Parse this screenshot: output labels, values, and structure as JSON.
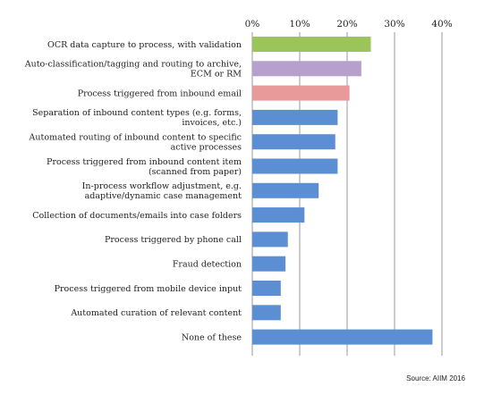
{
  "chart_data": {
    "type": "bar",
    "orientation": "horizontal",
    "categories": [
      [
        "OCR data capture to process, with validation"
      ],
      [
        "Auto-classification/tagging and routing to archive,",
        "ECM or RM"
      ],
      [
        "Process triggered from inbound email"
      ],
      [
        "Separation of inbound content types (e.g. forms,",
        "invoices, etc.)"
      ],
      [
        "Automated routing of inbound content to specific",
        "active processes"
      ],
      [
        "Process triggered from inbound content item",
        "(scanned from paper)"
      ],
      [
        "In-process workflow adjustment, e.g.",
        "adaptive/dynamic case management"
      ],
      [
        "Collection of documents/emails into case folders"
      ],
      [
        "Process triggered by phone call"
      ],
      [
        "Fraud detection"
      ],
      [
        "Process triggered from mobile device input"
      ],
      [
        "Automated curation of relevant content"
      ],
      [
        "None of these"
      ]
    ],
    "values": [
      25,
      23,
      20.5,
      18,
      17.5,
      18,
      14,
      11,
      7.5,
      7,
      6,
      6,
      38
    ],
    "bar_colors": [
      "#9bc55a",
      "#b7a0cc",
      "#e8999a",
      "#5b8ed3",
      "#5b8ed3",
      "#5b8ed3",
      "#5b8ed3",
      "#5b8ed3",
      "#5b8ed3",
      "#5b8ed3",
      "#5b8ed3",
      "#5b8ed3",
      "#5b8ed3"
    ],
    "x_ticks": [
      "0%",
      "10%",
      "20%",
      "30%",
      "40%"
    ],
    "x_tick_values": [
      0,
      10,
      20,
      30,
      40
    ],
    "xlim": [
      0,
      40
    ],
    "grid": true,
    "axis_position": "top"
  },
  "source_note": "Source: AIIM 2016"
}
